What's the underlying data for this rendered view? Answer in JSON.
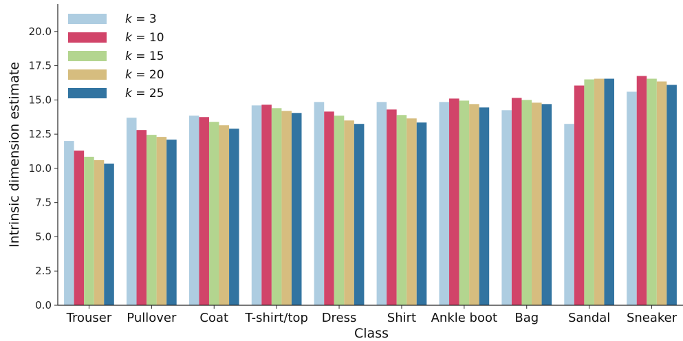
{
  "chart_data": {
    "type": "bar",
    "xlabel": "Class",
    "ylabel": "Intrinsic dimension estimate",
    "ylim": [
      0,
      22.0
    ],
    "yticks": [
      0.0,
      2.5,
      5.0,
      7.5,
      10.0,
      12.5,
      15.0,
      17.5,
      20.0
    ],
    "ytick_labels": [
      "0.0",
      "2.5",
      "5.0",
      "7.5",
      "10.0",
      "12.5",
      "15.0",
      "17.5",
      "20.0"
    ],
    "grid": false,
    "legend_position": "top-left",
    "categories": [
      "Trouser",
      "Pullover",
      "Coat",
      "T-shirt/top",
      "Dress",
      "Shirt",
      "Ankle boot",
      "Bag",
      "Sandal",
      "Sneaker"
    ],
    "series": [
      {
        "name": "k = 3",
        "legend_var": "k",
        "legend_value": "3",
        "color": "#aecde1",
        "values": [
          12.0,
          13.7,
          13.85,
          14.6,
          14.85,
          14.85,
          14.85,
          14.25,
          13.25,
          15.6
        ]
      },
      {
        "name": "k = 10",
        "legend_var": "k",
        "legend_value": "10",
        "color": "#d14469",
        "values": [
          11.3,
          12.8,
          13.75,
          14.65,
          14.15,
          14.3,
          15.1,
          15.15,
          16.05,
          16.75
        ]
      },
      {
        "name": "k = 15",
        "legend_var": "k",
        "legend_value": "15",
        "color": "#b3d58f",
        "values": [
          10.85,
          12.45,
          13.4,
          14.4,
          13.85,
          13.9,
          14.95,
          15.0,
          16.5,
          16.55
        ]
      },
      {
        "name": "k = 20",
        "legend_var": "k",
        "legend_value": "20",
        "color": "#d6bd7f",
        "values": [
          10.6,
          12.3,
          13.15,
          14.2,
          13.5,
          13.65,
          14.7,
          14.8,
          16.55,
          16.35
        ]
      },
      {
        "name": "k = 25",
        "legend_var": "k",
        "legend_value": "25",
        "color": "#3274a1",
        "values": [
          10.35,
          12.1,
          12.9,
          14.05,
          13.25,
          13.35,
          14.45,
          14.7,
          16.55,
          16.1
        ]
      }
    ]
  }
}
